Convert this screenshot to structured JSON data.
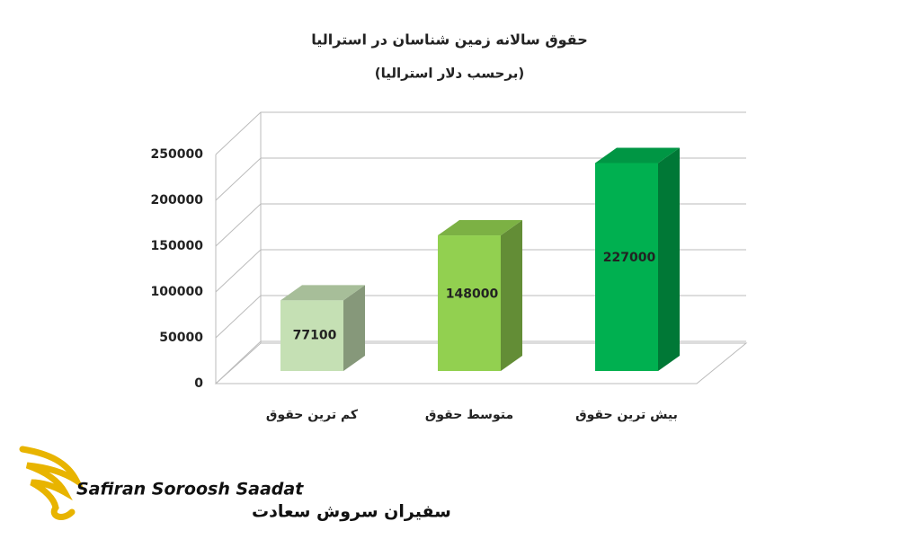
{
  "chart_data": {
    "type": "bar3d",
    "title": "حقوق سالانه زمین شناسان در استرالیا",
    "subtitle": "(برحسب دلار استرالیا)",
    "categories": [
      "کم ترین حقوق",
      "متوسط حقوق",
      "بیش ترین حقوق"
    ],
    "values": [
      77100,
      148000,
      227000
    ],
    "colors": [
      "#c5e0b4",
      "#92d050",
      "#00b050"
    ],
    "ylim": [
      0,
      250000
    ],
    "yticks": [
      0,
      50000,
      100000,
      150000,
      200000,
      250000
    ],
    "grid": true
  },
  "logo": {
    "latin": "Safiran Soroosh Saadat",
    "persian": "سفیران سروش سعادت"
  }
}
